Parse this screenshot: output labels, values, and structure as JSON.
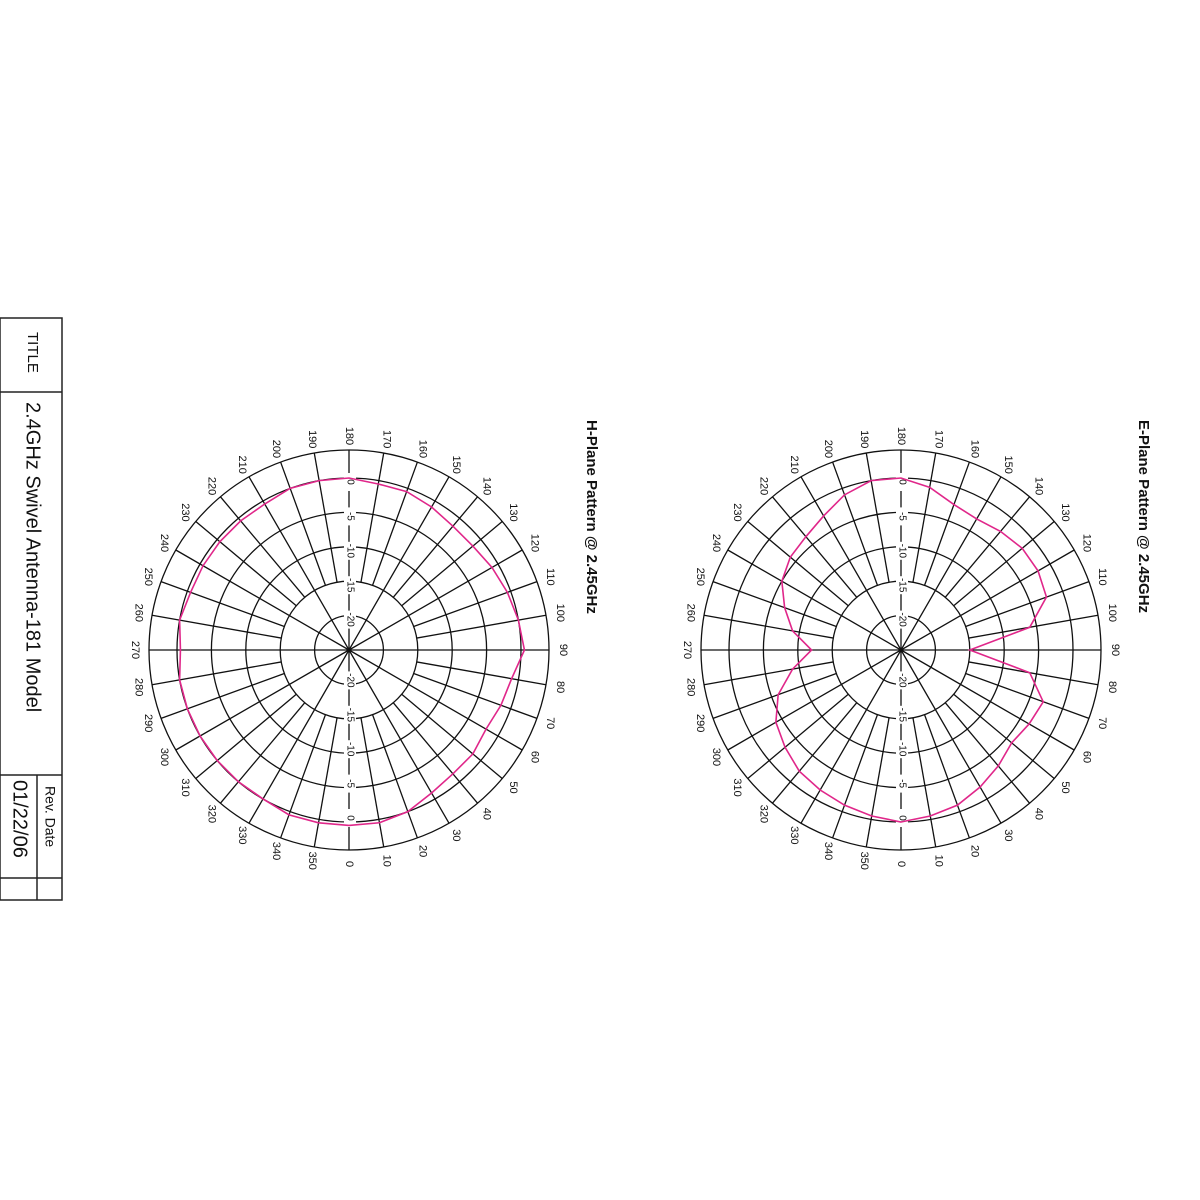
{
  "title_block": {
    "title_label": "TITLE",
    "title": "2.4GHz Swivel Antenna-181 Model",
    "rev_date_label": "Rev. Date",
    "rev_date": "01/22/06"
  },
  "chart_data": [
    {
      "type": "polar",
      "title": "H-Plane Pattern @ 2.45GHz",
      "angles": [
        0,
        10,
        20,
        30,
        40,
        50,
        60,
        70,
        80,
        90,
        100,
        110,
        120,
        130,
        140,
        150,
        160,
        170,
        180,
        190,
        200,
        210,
        220,
        230,
        240,
        250,
        260,
        270,
        280,
        290,
        300,
        310,
        320,
        330,
        340,
        350
      ],
      "series": [
        {
          "color": "#e0278a",
          "values": [
            0.5,
            0.5,
            0,
            -1,
            -1.5,
            -1.5,
            -2,
            -1.5,
            -1,
            0.5,
            0,
            -0.5,
            -1,
            -1.5,
            -1.5,
            -1,
            -0.5,
            -0.5,
            0,
            0,
            0,
            -0.5,
            -0.5,
            -0.5,
            -0.5,
            -0.5,
            0,
            -0.5,
            0,
            0,
            0,
            0,
            0,
            0,
            0.5,
            0.5
          ]
        }
      ],
      "rlim": [
        -25,
        0
      ],
      "rticks": [
        -20,
        -15,
        -10,
        -5,
        0
      ]
    },
    {
      "type": "polar",
      "title": "E-Plane Pattern @ 2.45GHz",
      "angles": [
        0,
        10,
        20,
        30,
        40,
        50,
        60,
        70,
        80,
        90,
        100,
        110,
        120,
        130,
        140,
        150,
        160,
        170,
        180,
        190,
        200,
        210,
        220,
        230,
        240,
        250,
        260,
        270,
        280,
        290,
        300,
        310,
        320,
        330,
        340,
        350
      ],
      "series": [
        {
          "color": "#e0278a",
          "values": [
            0,
            -0.5,
            -1,
            -2,
            -3,
            -4,
            -3.5,
            -3,
            -6,
            -15,
            -6,
            -2.5,
            -2,
            -2,
            -2.5,
            -3,
            -2.5,
            -1,
            0,
            0,
            -1,
            -2.5,
            -3.5,
            -4,
            -5,
            -7,
            -9,
            -12,
            -9,
            -6,
            -4,
            -3,
            -2,
            -1.5,
            -1,
            -0.5
          ]
        }
      ],
      "rlim": [
        -25,
        0
      ],
      "rticks": [
        -20,
        -15,
        -10,
        -5,
        0
      ]
    }
  ]
}
